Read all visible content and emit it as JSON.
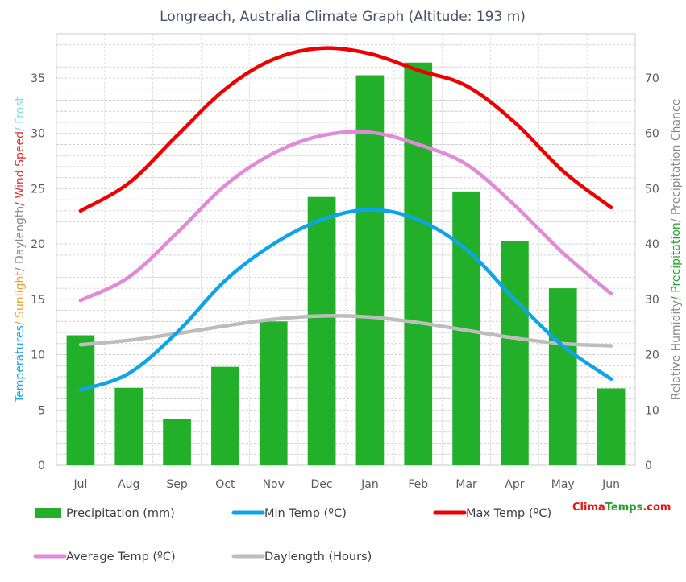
{
  "chart_data": {
    "type": "bar+line",
    "title": "Longreach, Australia Climate Graph (Altitude: 193 m)",
    "categories": [
      "Jul",
      "Aug",
      "Sep",
      "Oct",
      "Nov",
      "Dec",
      "Jan",
      "Feb",
      "Mar",
      "Apr",
      "May",
      "Jun"
    ],
    "left_axis": {
      "label_parts": [
        {
          "text": "Temperatures",
          "color": "#1aa8e0"
        },
        {
          "text": "/ ",
          "color": "#e8a033"
        },
        {
          "text": "Sunlight",
          "color": "#e8a033"
        },
        {
          "text": "/ ",
          "color": "#8a8a8a"
        },
        {
          "text": "Daylength",
          "color": "#8a8a8a"
        },
        {
          "text": "/ ",
          "color": "#e03030"
        },
        {
          "text": "Wind Speed",
          "color": "#e03030"
        },
        {
          "text": "/ ",
          "color": "#7fd8e8"
        },
        {
          "text": "Frost",
          "color": "#7fd8e8"
        }
      ],
      "ylim": [
        0,
        39
      ],
      "ticks": [
        0,
        5,
        10,
        15,
        20,
        25,
        30,
        35
      ]
    },
    "right_axis": {
      "label_parts": [
        {
          "text": "Relative Humidity",
          "color": "#8a8a8a"
        },
        {
          "text": "/ ",
          "color": "#22a32b"
        },
        {
          "text": "Precipitation",
          "color": "#22a32b"
        },
        {
          "text": "/ ",
          "color": "#8a8a8a"
        },
        {
          "text": "Precipitation Chance",
          "color": "#8a8a8a"
        }
      ],
      "ylim": [
        0,
        78
      ],
      "ticks": [
        0,
        10,
        20,
        30,
        40,
        50,
        60,
        70
      ]
    },
    "series": [
      {
        "name": "Precipitation (mm)",
        "kind": "bar",
        "axis": "right",
        "color": "#22b02b",
        "values": [
          23.5,
          14.0,
          8.3,
          17.8,
          26.0,
          48.5,
          70.5,
          72.8,
          49.5,
          40.6,
          32.0,
          13.9
        ]
      },
      {
        "name": "Min Temp (ºC)",
        "kind": "line",
        "axis": "left",
        "color": "#0ea5e6",
        "values": [
          6.8,
          8.3,
          12.0,
          16.7,
          20.0,
          22.2,
          23.1,
          22.2,
          19.5,
          15.0,
          10.8,
          7.8
        ]
      },
      {
        "name": "Max Temp (ºC)",
        "kind": "line",
        "axis": "left",
        "color": "#ee0000",
        "values": [
          23.0,
          25.5,
          29.8,
          34.0,
          36.7,
          37.7,
          37.2,
          35.7,
          34.3,
          31.0,
          26.6,
          23.3
        ]
      },
      {
        "name": "Average Temp (ºC)",
        "kind": "line",
        "axis": "left",
        "color": "#e08ad8",
        "values": [
          14.9,
          17.0,
          21.0,
          25.3,
          28.2,
          29.8,
          30.1,
          29.0,
          27.2,
          23.5,
          19.2,
          15.5
        ]
      },
      {
        "name": "Daylength (Hours)",
        "kind": "line",
        "axis": "left",
        "color": "#bdbdbd",
        "values": [
          10.9,
          11.3,
          11.9,
          12.6,
          13.2,
          13.5,
          13.4,
          12.9,
          12.2,
          11.5,
          11.0,
          10.8
        ]
      }
    ],
    "grid": true,
    "legend_position": "bottom"
  },
  "brand": {
    "part1": "Clima",
    "part2": "Temps",
    "part3": ".com",
    "color1": "#ee1111",
    "color2": "#22a32b"
  }
}
